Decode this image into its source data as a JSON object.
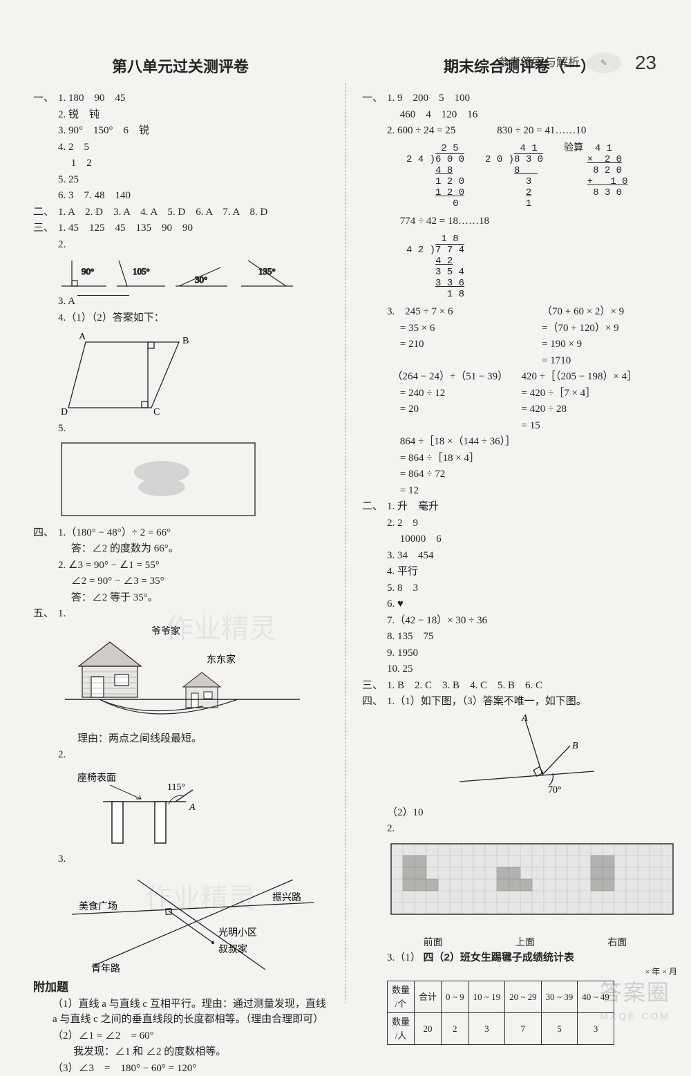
{
  "header": {
    "label": "参考答案与解析",
    "page": "23"
  },
  "left": {
    "title": "第八单元过关测评卷",
    "sec1": {
      "l1": "1. 180　90　45",
      "l2": "2. 锐　钝",
      "l3": "3. 90°　150°　6　锐",
      "l4": "4. 2　5",
      "l5": "　 1　2",
      "l6": "5. 25",
      "l7": "6. 3　7. 48　140"
    },
    "sec2": "1. A　2. D　3. A　4. A　5. D　6. A　7. A　8. D",
    "sec3": {
      "l1": "1. 45　125　45　135　90　90",
      "l2": "2.",
      "angles": {
        "a1": "90°",
        "a2": "105°",
        "a3": "30°",
        "a4": "135°"
      },
      "l3": "3. A",
      "l4": "4.（1）（2）答案如下：",
      "l5": "5.",
      "trapezoid": {
        "A": "A",
        "B": "B",
        "C": "C",
        "D": "D"
      }
    },
    "sec4": {
      "l1": "1.（180° − 48°）÷ 2 = 66°",
      "l2": "　 答：∠2 的度数为 66°。",
      "l3": "2. ∠3 = 90° − ∠1 = 55°",
      "l4": "　 ∠2 = 90° − ∠3 = 35°",
      "l5": "　 答：∠2 等于 35°。"
    },
    "sec5": {
      "l1": "1.",
      "g_label": "爷爷家",
      "d_label": "东东家",
      "reason": "理由：两点之间线段最短。",
      "l2": "2.",
      "chair": "座椅表面",
      "chair_angle": "115°",
      "chair_a": "A",
      "l3": "3.",
      "roads": {
        "food": "美食广场",
        "zhenxing": "振兴路",
        "guangming": "光明小区",
        "uncle": "叔叔家",
        "qingnian": "青年路"
      }
    },
    "extra": {
      "title": "附加题",
      "l1": "（1）直线 a 与直线 c 互相平行。理由：通过测量发现，直线 a 与直线 c 之间的垂直线段的长度都相等。（理由合理即可）",
      "l2": "（2）∠1 = ∠2　= 60°",
      "l3": "　　我发现：∠1 和 ∠2 的度数相等。",
      "l4": "（3）∠3　=　180° − 60° = 120°"
    }
  },
  "right": {
    "title": "期末综合测评卷（一）",
    "sec1": {
      "l1": "1. 9　200　5　100",
      "l2": "　 460　4　120　16",
      "l3": "2. 600 ÷ 24 = 25　　　　830 ÷ 20 = 41……10",
      "div1": {
        "divisor": "24",
        "dividend": "600",
        "quotient": "25",
        "steps": [
          "4 8",
          "1 2 0",
          "1 2 0",
          "0"
        ]
      },
      "div2": {
        "divisor": "20",
        "dividend": "830",
        "quotient": "41",
        "steps": [
          "8",
          "3",
          "2",
          "1"
        ]
      },
      "check": {
        "label": "验算",
        "a": "4 1",
        "x": "× 2 0",
        "s1": "8 2 0",
        "s2": "+  1 0",
        "s3": "8 3 0"
      },
      "l4": "　 774 ÷ 42 = 18……18",
      "div3": {
        "divisor": "42",
        "dividend": "774",
        "quotient": "18",
        "steps": [
          "4 2",
          "3 5 4",
          "3 3 6",
          "1 8"
        ]
      },
      "p3": {
        "a1": "3.　245 ÷ 7 × 6",
        "a2": "　 = 35 × 6",
        "a3": "　 = 210",
        "b1": "（70 + 60 × 2）× 9",
        "b2": "=（70 + 120）× 9",
        "b3": "= 190 × 9",
        "b4": "= 1710",
        "c1": "　（264 − 24）÷（51 − 39）",
        "c2": "　 = 240 ÷ 12",
        "c3": "　 = 20",
        "d1": "420 ÷［（205 − 198）× 4］",
        "d2": "= 420 ÷［7 × 4］",
        "d3": "= 420 ÷ 28",
        "d4": "= 15",
        "e1": "　 864 ÷［18 ×（144 ÷ 36）］",
        "e2": "　 = 864 ÷［18 × 4］",
        "e3": "　 = 864 ÷ 72",
        "e4": "　 = 12"
      }
    },
    "sec2": {
      "l1": "1. 升　毫升",
      "l2": "2. 2　9",
      "l3": "　 10000　6",
      "l4": "3. 34　454",
      "l5": "4. 平行",
      "l6": "5. 8　3",
      "l7": "6. ♥",
      "l8": "7.（42 − 18）× 30 ÷ 36",
      "l9": "8. 135　75",
      "l10": "9. 1950",
      "l11": "10. 25"
    },
    "sec3": "1. B　2. C　3. B　4. C　5. B　6. C",
    "sec4": {
      "l1": "1.（1）如下图，（3）答案不唯一，如下图。",
      "angle_fig": {
        "A": "A",
        "B": "B",
        "deg": "70°"
      },
      "l2": "（2）10",
      "l3": "2.",
      "views": {
        "front": "前面",
        "top": "上面",
        "right": "右面"
      },
      "grid": {
        "cols": 24,
        "rows": 6,
        "bg": "#e6e6e6",
        "line": "#bcbcbc",
        "fill": "#b4b2af",
        "shapes": [
          [
            [
              1,
              1
            ],
            [
              2,
              1
            ],
            [
              1,
              2
            ],
            [
              2,
              2
            ],
            [
              2,
              3
            ],
            [
              3,
              3
            ],
            [
              1,
              3
            ]
          ],
          [
            [
              9,
              2
            ],
            [
              10,
              2
            ],
            [
              9,
              3
            ],
            [
              10,
              3
            ],
            [
              11,
              3
            ]
          ],
          [
            [
              17,
              1
            ],
            [
              18,
              1
            ],
            [
              17,
              2
            ],
            [
              18,
              2
            ],
            [
              17,
              3
            ],
            [
              18,
              3
            ]
          ]
        ]
      },
      "l4": "3.（1）",
      "table": {
        "title": "四（2）班女生踢毽子成绩统计表",
        "sub": "× 年 × 月",
        "h1": "数量/个",
        "h2": "数量/人",
        "h_total": "合计",
        "cols": [
          "0 ~ 9",
          "10 ~ 19",
          "20 ~ 29",
          "30 ~ 39",
          "40 ~ 49"
        ],
        "vals": [
          "20",
          "2",
          "3",
          "7",
          "5",
          "3"
        ]
      }
    }
  },
  "watermark": {
    "main": "答案圈",
    "sub": "MXQE.COM"
  },
  "colors": {
    "ink": "#222222",
    "grid_bg": "#e6e6e6",
    "grid_line": "#bcbcbc",
    "grid_fill": "#b4b2af",
    "page_bg": "#f5f3f0"
  }
}
